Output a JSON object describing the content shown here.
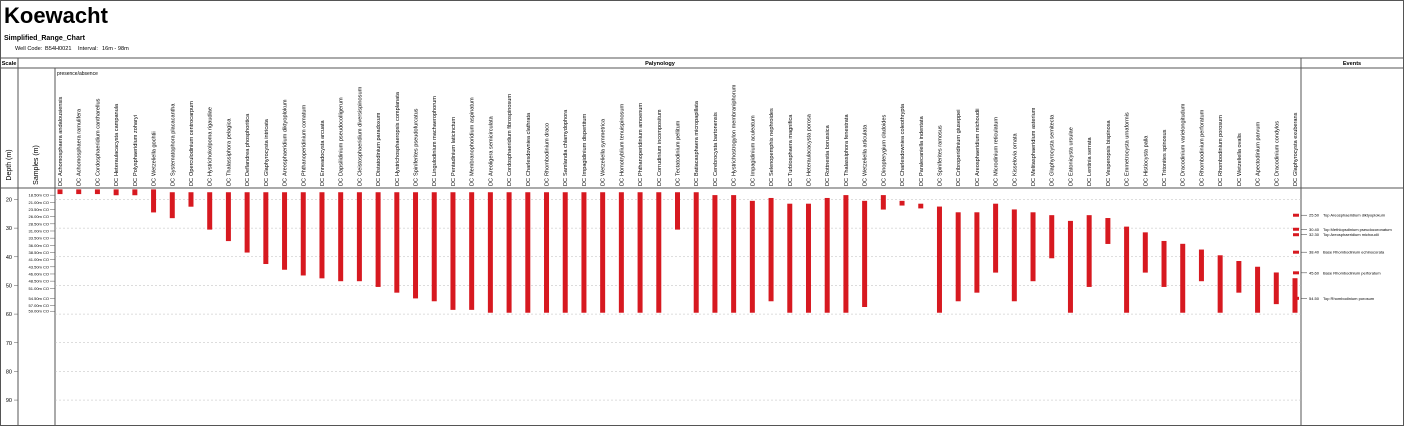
{
  "header": {
    "title": "Koewacht",
    "subtitle": "Simplified_Range_Chart",
    "well_code_label": "Well Code:",
    "well_code": "B54H0021",
    "interval_label": "Interval:",
    "interval": "16m - 98m"
  },
  "columns": {
    "scale": "Scale",
    "palynology": "Palynology",
    "events": "Events"
  },
  "note": "presence/absence",
  "axis": {
    "label": "Depth (m)",
    "samples_label": "Samples (m)",
    "ylim": [
      16,
      98
    ],
    "yticks": [
      20,
      30,
      40,
      50,
      60,
      70,
      80,
      90
    ]
  },
  "samples": [
    {
      "depth": 18.5,
      "label": "18.50m CO"
    },
    {
      "depth": 21.0,
      "label": "21.00m CO"
    },
    {
      "depth": 23.5,
      "label": "23.50m CO"
    },
    {
      "depth": 26.0,
      "label": "26.00m CO"
    },
    {
      "depth": 28.5,
      "label": "28.50m CO"
    },
    {
      "depth": 31.0,
      "label": "31.00m CO"
    },
    {
      "depth": 33.5,
      "label": "33.50m CO"
    },
    {
      "depth": 36.0,
      "label": "36.00m CO"
    },
    {
      "depth": 38.5,
      "label": "38.50m CO"
    },
    {
      "depth": 41.0,
      "label": "41.00m CO"
    },
    {
      "depth": 43.5,
      "label": "43.50m CO"
    },
    {
      "depth": 46.0,
      "label": "46.00m CO"
    },
    {
      "depth": 48.5,
      "label": "48.50m CO"
    },
    {
      "depth": 51.0,
      "label": "51.00m CO"
    },
    {
      "depth": 54.5,
      "label": "54.50m CO"
    },
    {
      "depth": 57.0,
      "label": "57.00m CO"
    },
    {
      "depth": 59.0,
      "label": "59.00m CO"
    }
  ],
  "taxa": [
    {
      "group": "DC",
      "name": "Achomosphaera andalousiensis",
      "top": 17,
      "base": 17.6
    },
    {
      "group": "DC",
      "name": "Achomosphaera ramulifera",
      "top": 17,
      "base": 17.6
    },
    {
      "group": "DC",
      "name": "Cordosphaeridium cantharellus",
      "top": 17,
      "base": 17.6
    },
    {
      "group": "DC",
      "name": "Heteraulacacysta campanula",
      "top": 17,
      "base": 18
    },
    {
      "group": "DC",
      "name": "Polysphaeridium zoharyi",
      "top": 17,
      "base": 18
    },
    {
      "group": "DC",
      "name": "Wetzeliella gochtii",
      "top": 17,
      "base": 24
    },
    {
      "group": "DC",
      "name": "Systematophora placacantha",
      "top": 18,
      "base": 26
    },
    {
      "group": "DC",
      "name": "Operculodinium centrocarpum",
      "top": 18,
      "base": 22
    },
    {
      "group": "DC",
      "name": "Hystrichokolpoma rigaudiae",
      "top": 18,
      "base": 30
    },
    {
      "group": "DC",
      "name": "Thalassiphora pelagica",
      "top": 18,
      "base": 34
    },
    {
      "group": "DC",
      "name": "Deflandrea phosphoritica",
      "top": 18,
      "base": 38
    },
    {
      "group": "DC",
      "name": "Glaphyrocysta intricata",
      "top": 18,
      "base": 42
    },
    {
      "group": "DC",
      "name": "Areosphaeridium diktyoplokum",
      "top": 18,
      "base": 44
    },
    {
      "group": "DC",
      "name": "Phthanoperidinium comatum",
      "top": 18,
      "base": 46
    },
    {
      "group": "DC",
      "name": "Enneadocysta arcuata",
      "top": 18,
      "base": 47
    },
    {
      "group": "DC",
      "name": "Dapsilidinium pseudocolligerum",
      "top": 18,
      "base": 48
    },
    {
      "group": "DC",
      "name": "Cleistosphaeridium diversispinosum",
      "top": 18,
      "base": 48
    },
    {
      "group": "DC",
      "name": "Distatodinium paradoxum",
      "top": 18,
      "base": 50
    },
    {
      "group": "DC",
      "name": "Hystrichosphaeropsis complanata",
      "top": 18,
      "base": 52
    },
    {
      "group": "DC",
      "name": "Spiniferites pseudofurcatus",
      "top": 18,
      "base": 54
    },
    {
      "group": "DC",
      "name": "Lingulodinium machaerophorum",
      "top": 18,
      "base": 55
    },
    {
      "group": "DC",
      "name": "Pentadinium laticinctum",
      "top": 18,
      "base": 58
    },
    {
      "group": "DC",
      "name": "Membranophoridium aspinatum",
      "top": 18,
      "base": 58
    },
    {
      "group": "DC",
      "name": "Areoligera semicirculata",
      "top": 18,
      "base": 59
    },
    {
      "group": "DC",
      "name": "Cordosphaeridium fibrospinosum",
      "top": 18,
      "base": 59
    },
    {
      "group": "DC",
      "name": "Charlesdowniea clathrata",
      "top": 18,
      "base": 59
    },
    {
      "group": "DC",
      "name": "Rhombodinium draco",
      "top": 18,
      "base": 59
    },
    {
      "group": "DC",
      "name": "Samlandia chlamydophora",
      "top": 18,
      "base": 59
    },
    {
      "group": "DC",
      "name": "Impagidinium dispertitum",
      "top": 18,
      "base": 59
    },
    {
      "group": "DC",
      "name": "Wetzeliella symmetrica",
      "top": 18,
      "base": 59
    },
    {
      "group": "DC",
      "name": "Homotryblium tenuispinosum",
      "top": 18,
      "base": 59
    },
    {
      "group": "DC",
      "name": "Phthanoperidinium amoenum",
      "top": 18,
      "base": 59
    },
    {
      "group": "DC",
      "name": "Corrudinium incompositum",
      "top": 18,
      "base": 59
    },
    {
      "group": "DC",
      "name": "Tectatodinium pellitum",
      "top": 18,
      "base": 30
    },
    {
      "group": "DC",
      "name": "Batiacasphaera micropapillata",
      "top": 18,
      "base": 59
    },
    {
      "group": "DC",
      "name": "Cerebrocysta bartonensis",
      "top": 19,
      "base": 59
    },
    {
      "group": "DC",
      "name": "Hystrichostrogylon membraniphorum",
      "top": 19,
      "base": 59
    },
    {
      "group": "DC",
      "name": "Impagidinium aculeatum",
      "top": 21,
      "base": 59
    },
    {
      "group": "DC",
      "name": "Selenopemphix nephroides",
      "top": 20,
      "base": 55
    },
    {
      "group": "DC",
      "name": "Turbiosphaera magnifica",
      "top": 22,
      "base": 59
    },
    {
      "group": "DC",
      "name": "Heteraulacacysta porosa",
      "top": 22,
      "base": 59
    },
    {
      "group": "DC",
      "name": "Rottnestia borussica",
      "top": 20,
      "base": 59
    },
    {
      "group": "DC",
      "name": "Thalassiphora fenestrata",
      "top": 19,
      "base": 59
    },
    {
      "group": "DC",
      "name": "Wetzeliella articulata",
      "top": 21,
      "base": 57
    },
    {
      "group": "DC",
      "name": "Dinopterygium cladoides",
      "top": 19,
      "base": 23
    },
    {
      "group": "DC",
      "name": "Charlesdowniea coleothrypta",
      "top": 21,
      "base": 21.6
    },
    {
      "group": "DC",
      "name": "Paralecaniella indentata",
      "top": 22,
      "base": 22.6
    },
    {
      "group": "DC",
      "name": "Spiniferites ramosus",
      "top": 23,
      "base": 59
    },
    {
      "group": "DC",
      "name": "Cribroperidinium giuseppei",
      "top": 25,
      "base": 55
    },
    {
      "group": "DC",
      "name": "Areosphaeridium michoudii",
      "top": 25,
      "base": 52
    },
    {
      "group": "DC",
      "name": "Microdinium reticulatum",
      "top": 22,
      "base": 45
    },
    {
      "group": "DC",
      "name": "Kisselovia ornata",
      "top": 24,
      "base": 55
    },
    {
      "group": "DC",
      "name": "Melitasphaeridium asterium",
      "top": 25,
      "base": 48
    },
    {
      "group": "DC",
      "name": "Glaphyrocysta semitecta",
      "top": 26,
      "base": 40
    },
    {
      "group": "DC",
      "name": "Eatonicysta ursulae",
      "top": 28,
      "base": 59
    },
    {
      "group": "DC",
      "name": "Lentinia serrata",
      "top": 26,
      "base": 50
    },
    {
      "group": "DC",
      "name": "Vesperopsis bispinosa",
      "top": 27,
      "base": 35
    },
    {
      "group": "DC",
      "name": "Emmetrocysta urnaformis",
      "top": 30,
      "base": 59
    },
    {
      "group": "DC",
      "name": "Histiocysta palla",
      "top": 32,
      "base": 45
    },
    {
      "group": "DC",
      "name": "Tritonites spinosus",
      "top": 35,
      "base": 50
    },
    {
      "group": "DC",
      "name": "Dracodinium varielongitudum",
      "top": 36,
      "base": 59
    },
    {
      "group": "DC",
      "name": "Rhombodinium perforatum",
      "top": 38,
      "base": 48
    },
    {
      "group": "DC",
      "name": "Rhombodinium porosum",
      "top": 40,
      "base": 59
    },
    {
      "group": "DC",
      "name": "Wetzeliella ovalis",
      "top": 42,
      "base": 52
    },
    {
      "group": "DC",
      "name": "Apectodinium parvum",
      "top": 44,
      "base": 59
    },
    {
      "group": "DC",
      "name": "Dracodinium condylos",
      "top": 46,
      "base": 56
    },
    {
      "group": "DC",
      "name": "Glaphyrocysta exuberans",
      "top": 48,
      "base": 59
    }
  ],
  "events": [
    {
      "depth": 25.5,
      "depth_label": "25.50",
      "label": "Top Areosphaeridium diktyoplokum"
    },
    {
      "depth": 30.4,
      "depth_label": "30.40",
      "label": "Top Methlopsdinium pseudocoronatum"
    },
    {
      "depth": 32.3,
      "depth_label": "32.30",
      "label": "Top Areosphaeridium michoudii"
    },
    {
      "depth": 38.4,
      "depth_label": "38.40",
      "label": "Base Rhombodinium echinocorata"
    },
    {
      "depth": 45.6,
      "depth_label": "45.60",
      "label": "Base Rhombodinium perforatum"
    },
    {
      "depth": 54.5,
      "depth_label": "54.50",
      "label": "Top Rhombodinium porosum"
    }
  ]
}
